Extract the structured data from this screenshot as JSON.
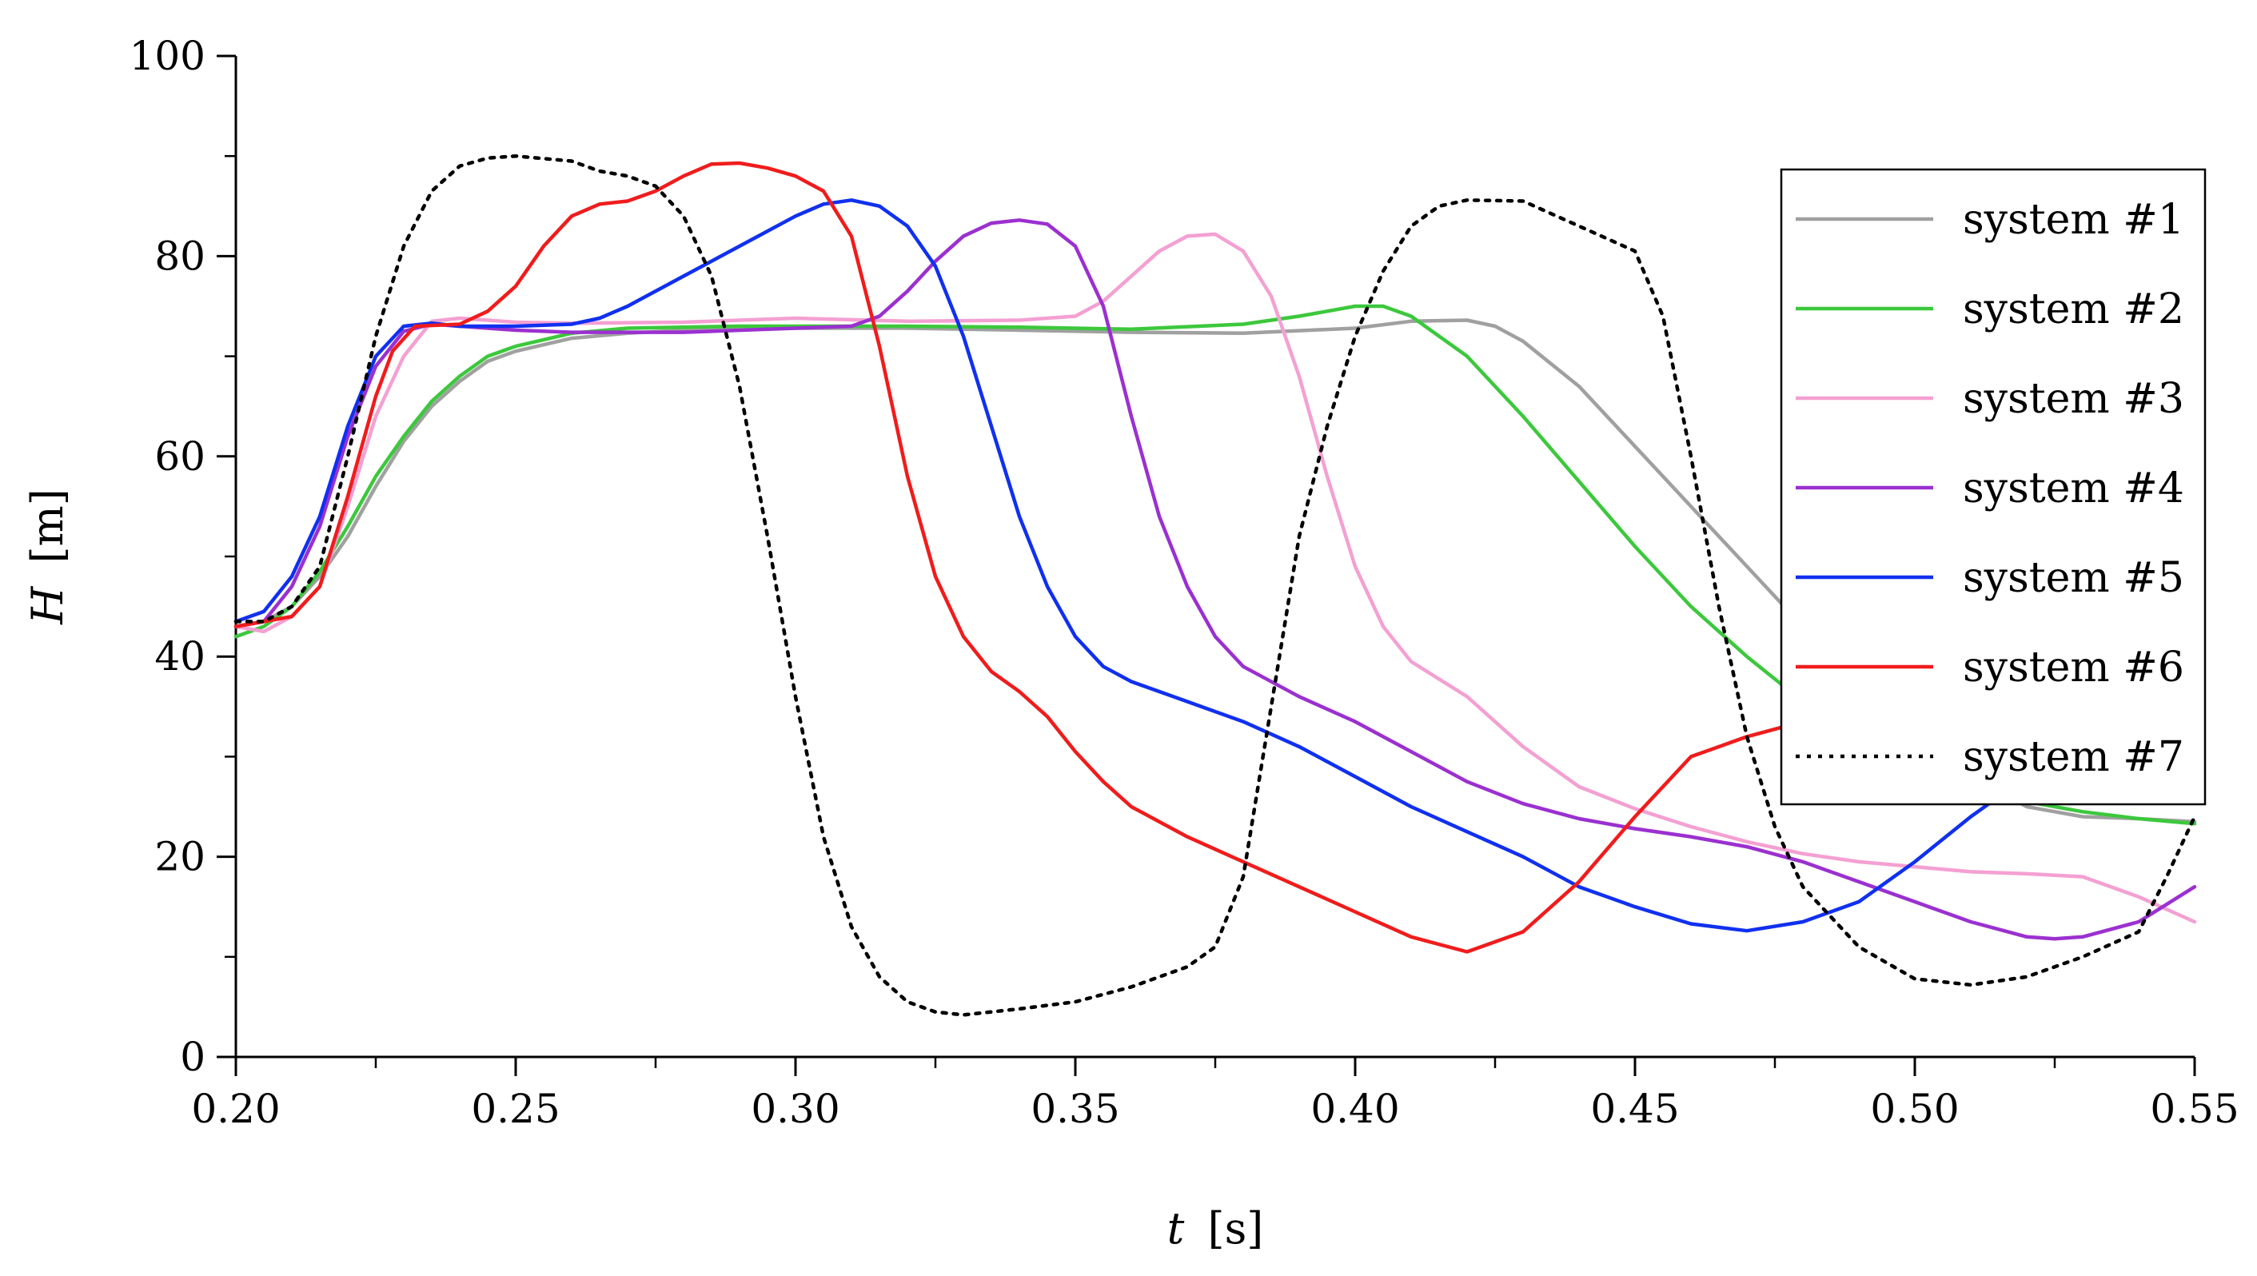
{
  "chart_data": {
    "type": "line",
    "xlabel_var": "t",
    "xlabel_unit": "[s]",
    "ylabel_var": "H",
    "ylabel_unit": "[m]",
    "xlim": [
      0.2,
      0.55
    ],
    "ylim": [
      0,
      100
    ],
    "xticks": [
      "0.20",
      "0.25",
      "0.30",
      "0.35",
      "0.40",
      "0.45",
      "0.50",
      "0.55"
    ],
    "yticks": [
      "0",
      "20",
      "40",
      "60",
      "80",
      "100"
    ],
    "grid": false,
    "legend_position": "top-right",
    "series": [
      {
        "name": "system #1",
        "color": "#a0a0a0",
        "dash": "solid",
        "points": [
          [
            0.2,
            43
          ],
          [
            0.205,
            43.5
          ],
          [
            0.21,
            45
          ],
          [
            0.215,
            48
          ],
          [
            0.22,
            52
          ],
          [
            0.225,
            57
          ],
          [
            0.23,
            61.5
          ],
          [
            0.235,
            65
          ],
          [
            0.24,
            67.5
          ],
          [
            0.245,
            69.5
          ],
          [
            0.25,
            70.5
          ],
          [
            0.26,
            71.8
          ],
          [
            0.27,
            72.3
          ],
          [
            0.28,
            72.6
          ],
          [
            0.3,
            72.8
          ],
          [
            0.32,
            72.8
          ],
          [
            0.34,
            72.6
          ],
          [
            0.36,
            72.4
          ],
          [
            0.38,
            72.3
          ],
          [
            0.4,
            72.8
          ],
          [
            0.41,
            73.5
          ],
          [
            0.42,
            73.6
          ],
          [
            0.425,
            73
          ],
          [
            0.43,
            71.5
          ],
          [
            0.44,
            67
          ],
          [
            0.45,
            61
          ],
          [
            0.46,
            55
          ],
          [
            0.47,
            49
          ],
          [
            0.48,
            43
          ],
          [
            0.49,
            37
          ],
          [
            0.5,
            32
          ],
          [
            0.51,
            28
          ],
          [
            0.52,
            25
          ],
          [
            0.53,
            24
          ],
          [
            0.54,
            23.8
          ],
          [
            0.55,
            23.5
          ]
        ]
      },
      {
        "name": "system #2",
        "color": "#3cc83c",
        "dash": "solid",
        "points": [
          [
            0.2,
            42
          ],
          [
            0.205,
            43
          ],
          [
            0.21,
            45
          ],
          [
            0.215,
            48.5
          ],
          [
            0.22,
            53
          ],
          [
            0.225,
            58
          ],
          [
            0.23,
            62
          ],
          [
            0.235,
            65.5
          ],
          [
            0.24,
            68
          ],
          [
            0.245,
            70
          ],
          [
            0.25,
            71
          ],
          [
            0.26,
            72.3
          ],
          [
            0.27,
            72.8
          ],
          [
            0.29,
            73
          ],
          [
            0.32,
            73
          ],
          [
            0.34,
            72.9
          ],
          [
            0.36,
            72.7
          ],
          [
            0.38,
            73.2
          ],
          [
            0.39,
            74
          ],
          [
            0.4,
            75
          ],
          [
            0.405,
            75
          ],
          [
            0.41,
            74
          ],
          [
            0.42,
            70
          ],
          [
            0.43,
            64
          ],
          [
            0.44,
            57.5
          ],
          [
            0.45,
            51
          ],
          [
            0.46,
            45
          ],
          [
            0.47,
            40
          ],
          [
            0.48,
            35.5
          ],
          [
            0.49,
            32
          ],
          [
            0.5,
            29
          ],
          [
            0.51,
            27
          ],
          [
            0.52,
            25.5
          ],
          [
            0.53,
            24.5
          ],
          [
            0.54,
            23.8
          ],
          [
            0.55,
            23.3
          ]
        ]
      },
      {
        "name": "system #3",
        "color": "#f4a0d2",
        "dash": "solid",
        "points": [
          [
            0.2,
            43
          ],
          [
            0.205,
            42.5
          ],
          [
            0.21,
            44
          ],
          [
            0.215,
            47
          ],
          [
            0.22,
            55
          ],
          [
            0.225,
            64
          ],
          [
            0.23,
            70
          ],
          [
            0.235,
            73.5
          ],
          [
            0.24,
            73.8
          ],
          [
            0.25,
            73.4
          ],
          [
            0.26,
            73.3
          ],
          [
            0.28,
            73.4
          ],
          [
            0.3,
            73.8
          ],
          [
            0.32,
            73.5
          ],
          [
            0.34,
            73.6
          ],
          [
            0.35,
            74
          ],
          [
            0.355,
            75.5
          ],
          [
            0.36,
            78
          ],
          [
            0.365,
            80.5
          ],
          [
            0.37,
            82
          ],
          [
            0.375,
            82.2
          ],
          [
            0.38,
            80.5
          ],
          [
            0.385,
            76
          ],
          [
            0.39,
            68
          ],
          [
            0.395,
            58
          ],
          [
            0.4,
            49
          ],
          [
            0.405,
            43
          ],
          [
            0.41,
            39.5
          ],
          [
            0.42,
            36
          ],
          [
            0.43,
            31
          ],
          [
            0.44,
            27
          ],
          [
            0.45,
            24.8
          ],
          [
            0.46,
            23
          ],
          [
            0.47,
            21.5
          ],
          [
            0.48,
            20.3
          ],
          [
            0.49,
            19.5
          ],
          [
            0.5,
            19
          ],
          [
            0.51,
            18.5
          ],
          [
            0.52,
            18.3
          ],
          [
            0.53,
            18
          ],
          [
            0.54,
            16
          ],
          [
            0.55,
            13.5
          ]
        ]
      },
      {
        "name": "system #4",
        "color": "#9b30d0",
        "dash": "solid",
        "points": [
          [
            0.2,
            43
          ],
          [
            0.205,
            43.5
          ],
          [
            0.21,
            47
          ],
          [
            0.215,
            53
          ],
          [
            0.22,
            62
          ],
          [
            0.225,
            69
          ],
          [
            0.23,
            72.5
          ],
          [
            0.235,
            73.2
          ],
          [
            0.24,
            73
          ],
          [
            0.25,
            72.6
          ],
          [
            0.26,
            72.4
          ],
          [
            0.28,
            72.4
          ],
          [
            0.3,
            72.8
          ],
          [
            0.31,
            73
          ],
          [
            0.315,
            74
          ],
          [
            0.32,
            76.5
          ],
          [
            0.325,
            79.5
          ],
          [
            0.33,
            82
          ],
          [
            0.335,
            83.3
          ],
          [
            0.34,
            83.6
          ],
          [
            0.345,
            83.2
          ],
          [
            0.35,
            81
          ],
          [
            0.355,
            75
          ],
          [
            0.36,
            64
          ],
          [
            0.365,
            54
          ],
          [
            0.37,
            47
          ],
          [
            0.375,
            42
          ],
          [
            0.38,
            39
          ],
          [
            0.39,
            36
          ],
          [
            0.4,
            33.5
          ],
          [
            0.41,
            30.5
          ],
          [
            0.42,
            27.5
          ],
          [
            0.43,
            25.3
          ],
          [
            0.44,
            23.8
          ],
          [
            0.45,
            22.8
          ],
          [
            0.46,
            22
          ],
          [
            0.47,
            21
          ],
          [
            0.48,
            19.5
          ],
          [
            0.49,
            17.5
          ],
          [
            0.5,
            15.5
          ],
          [
            0.51,
            13.5
          ],
          [
            0.52,
            12
          ],
          [
            0.525,
            11.8
          ],
          [
            0.53,
            12
          ],
          [
            0.54,
            13.5
          ],
          [
            0.55,
            17
          ]
        ]
      },
      {
        "name": "system #5",
        "color": "#1030f0",
        "dash": "solid",
        "points": [
          [
            0.2,
            43.5
          ],
          [
            0.205,
            44.5
          ],
          [
            0.21,
            48
          ],
          [
            0.215,
            54
          ],
          [
            0.22,
            63
          ],
          [
            0.225,
            70
          ],
          [
            0.23,
            73
          ],
          [
            0.235,
            73.3
          ],
          [
            0.24,
            73
          ],
          [
            0.25,
            73
          ],
          [
            0.26,
            73.2
          ],
          [
            0.265,
            73.8
          ],
          [
            0.27,
            75
          ],
          [
            0.28,
            78
          ],
          [
            0.29,
            81
          ],
          [
            0.3,
            84
          ],
          [
            0.305,
            85.2
          ],
          [
            0.31,
            85.6
          ],
          [
            0.315,
            85
          ],
          [
            0.32,
            83
          ],
          [
            0.325,
            79
          ],
          [
            0.33,
            72
          ],
          [
            0.335,
            63
          ],
          [
            0.34,
            54
          ],
          [
            0.345,
            47
          ],
          [
            0.35,
            42
          ],
          [
            0.355,
            39
          ],
          [
            0.36,
            37.5
          ],
          [
            0.37,
            35.5
          ],
          [
            0.38,
            33.5
          ],
          [
            0.39,
            31
          ],
          [
            0.4,
            28
          ],
          [
            0.41,
            25
          ],
          [
            0.42,
            22.5
          ],
          [
            0.43,
            20
          ],
          [
            0.44,
            17
          ],
          [
            0.45,
            15
          ],
          [
            0.46,
            13.3
          ],
          [
            0.47,
            12.6
          ],
          [
            0.48,
            13.5
          ],
          [
            0.49,
            15.5
          ],
          [
            0.5,
            19.5
          ],
          [
            0.51,
            24
          ],
          [
            0.52,
            28
          ],
          [
            0.53,
            29
          ],
          [
            0.54,
            29
          ],
          [
            0.55,
            29
          ]
        ]
      },
      {
        "name": "system #6",
        "color": "#f01c1c",
        "dash": "solid",
        "points": [
          [
            0.2,
            43
          ],
          [
            0.205,
            43.5
          ],
          [
            0.21,
            44
          ],
          [
            0.215,
            47
          ],
          [
            0.22,
            56
          ],
          [
            0.225,
            66
          ],
          [
            0.228,
            70.5
          ],
          [
            0.232,
            73
          ],
          [
            0.24,
            73.2
          ],
          [
            0.245,
            74.5
          ],
          [
            0.25,
            77
          ],
          [
            0.255,
            81
          ],
          [
            0.26,
            84
          ],
          [
            0.265,
            85.2
          ],
          [
            0.27,
            85.5
          ],
          [
            0.275,
            86.5
          ],
          [
            0.28,
            88
          ],
          [
            0.285,
            89.2
          ],
          [
            0.29,
            89.3
          ],
          [
            0.295,
            88.8
          ],
          [
            0.3,
            88
          ],
          [
            0.305,
            86.5
          ],
          [
            0.31,
            82
          ],
          [
            0.315,
            71
          ],
          [
            0.32,
            58
          ],
          [
            0.325,
            48
          ],
          [
            0.33,
            42
          ],
          [
            0.335,
            38.5
          ],
          [
            0.34,
            36.5
          ],
          [
            0.345,
            34
          ],
          [
            0.35,
            30.5
          ],
          [
            0.355,
            27.5
          ],
          [
            0.36,
            25
          ],
          [
            0.37,
            22
          ],
          [
            0.38,
            19.5
          ],
          [
            0.39,
            17
          ],
          [
            0.4,
            14.5
          ],
          [
            0.41,
            12
          ],
          [
            0.42,
            10.5
          ],
          [
            0.43,
            12.5
          ],
          [
            0.44,
            17.5
          ],
          [
            0.45,
            24
          ],
          [
            0.46,
            30
          ],
          [
            0.47,
            32
          ],
          [
            0.48,
            33.5
          ],
          [
            0.49,
            36
          ],
          [
            0.5,
            38
          ]
        ]
      },
      {
        "name": "system #7",
        "color": "#000000",
        "dash": "dotted",
        "points": [
          [
            0.2,
            43.5
          ],
          [
            0.205,
            43.5
          ],
          [
            0.21,
            45
          ],
          [
            0.215,
            49
          ],
          [
            0.22,
            60
          ],
          [
            0.225,
            72
          ],
          [
            0.23,
            81
          ],
          [
            0.235,
            86.5
          ],
          [
            0.24,
            89
          ],
          [
            0.245,
            89.8
          ],
          [
            0.25,
            90
          ],
          [
            0.26,
            89.5
          ],
          [
            0.265,
            88.5
          ],
          [
            0.27,
            88
          ],
          [
            0.275,
            87
          ],
          [
            0.28,
            84
          ],
          [
            0.285,
            78
          ],
          [
            0.29,
            67
          ],
          [
            0.295,
            52
          ],
          [
            0.3,
            36
          ],
          [
            0.305,
            22
          ],
          [
            0.31,
            13
          ],
          [
            0.315,
            8
          ],
          [
            0.32,
            5.5
          ],
          [
            0.325,
            4.5
          ],
          [
            0.33,
            4.2
          ],
          [
            0.335,
            4.5
          ],
          [
            0.34,
            4.8
          ],
          [
            0.35,
            5.5
          ],
          [
            0.36,
            7
          ],
          [
            0.37,
            9
          ],
          [
            0.375,
            11
          ],
          [
            0.38,
            18
          ],
          [
            0.385,
            35
          ],
          [
            0.39,
            52
          ],
          [
            0.395,
            63
          ],
          [
            0.4,
            72
          ],
          [
            0.405,
            78.5
          ],
          [
            0.41,
            83
          ],
          [
            0.415,
            85
          ],
          [
            0.42,
            85.6
          ],
          [
            0.43,
            85.5
          ],
          [
            0.44,
            83
          ],
          [
            0.45,
            80.5
          ],
          [
            0.455,
            74
          ],
          [
            0.46,
            60
          ],
          [
            0.465,
            45
          ],
          [
            0.47,
            32
          ],
          [
            0.475,
            23
          ],
          [
            0.48,
            17
          ],
          [
            0.49,
            11
          ],
          [
            0.5,
            7.8
          ],
          [
            0.51,
            7.2
          ],
          [
            0.52,
            8
          ],
          [
            0.53,
            10
          ],
          [
            0.54,
            12.5
          ],
          [
            0.545,
            18
          ],
          [
            0.55,
            24
          ]
        ]
      }
    ]
  }
}
